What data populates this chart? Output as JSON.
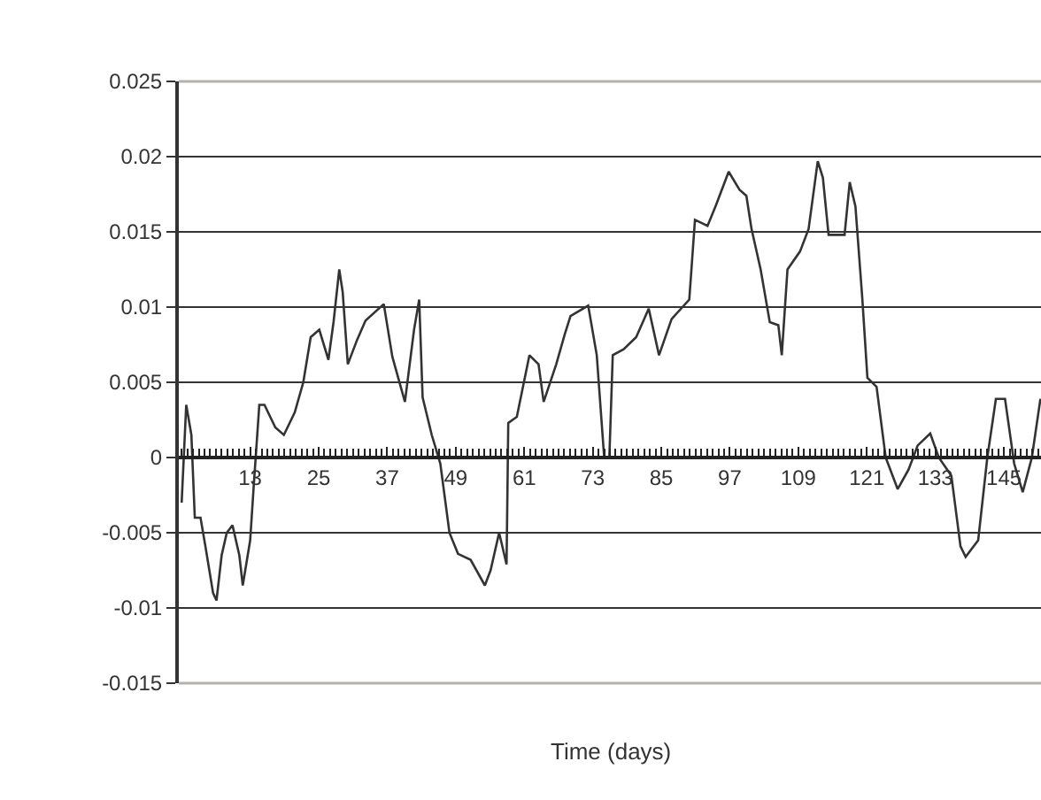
{
  "chart_data": {
    "type": "line",
    "xlabel": "Time (days)",
    "xlim": [
      0.5,
      151.5
    ],
    "xticks": [
      13,
      25,
      37,
      49,
      61,
      73,
      85,
      97,
      109,
      121,
      133,
      145
    ],
    "ylim": [
      -0.015,
      0.025
    ],
    "yticks": [
      {
        "value": -0.015,
        "label": "-0.015"
      },
      {
        "value": -0.01,
        "label": "-0.01"
      },
      {
        "value": -0.005,
        "label": "-0.005"
      },
      0,
      {
        "value": 0.005,
        "label": "0.005"
      },
      {
        "value": 0.01,
        "label": "0.01"
      },
      {
        "value": 0.015,
        "label": "0.015"
      },
      {
        "value": 0.02,
        "label": "0.02"
      },
      {
        "value": 0.025,
        "label": "0.025"
      }
    ],
    "grid": "y",
    "marker": "none",
    "line_style": "solid",
    "series": [
      {
        "color": "#333333",
        "x": [
          1,
          1.8,
          2.7,
          3.3,
          4.3,
          5.2,
          6.5,
          7.1,
          8,
          8.9,
          9.9,
          11.1,
          11.7,
          13,
          13.6,
          14.6,
          15.5,
          17.4,
          18.9,
          20.8,
          22.3,
          23.6,
          25.1,
          26.7,
          27.6,
          28.6,
          29.2,
          30.1,
          31.7,
          33.2,
          36.4,
          37.9,
          40.1,
          41.7,
          42.6,
          43.2,
          44.8,
          46.3,
          47.9,
          49.4,
          51.6,
          54.1,
          55.1,
          56.6,
          57.9,
          58.2,
          59.7,
          61.9,
          63.5,
          64.4,
          66.6,
          68.1,
          69.1,
          72.2,
          73.7,
          75,
          75.9,
          76.5,
          78.4,
          80.6,
          82.8,
          84.6,
          86.8,
          89.9,
          90.9,
          93.1,
          94.6,
          96.8,
          98.7,
          99.9,
          100.8,
          102.4,
          104,
          105.5,
          106.1,
          107.1,
          109.3,
          110.8,
          112.4,
          113.3,
          114.3,
          117.1,
          118,
          119,
          120.2,
          121.1,
          122.7,
          124.3,
          126.4,
          128.3,
          129.9,
          132.1,
          133.6,
          135.8,
          137.4,
          138.3,
          140.5,
          142.1,
          143.6,
          145.2,
          146.8,
          148.3,
          149.9,
          151.4
        ],
        "values": [
          -0.003,
          0.0035,
          0.0015,
          -0.004,
          -0.004,
          -0.006,
          -0.009,
          -0.0095,
          -0.0065,
          -0.005,
          -0.0045,
          -0.0065,
          -0.0085,
          -0.0055,
          -0.002,
          0.0035,
          0.0035,
          0.002,
          0.0015,
          0.003,
          0.005,
          0.008,
          0.0085,
          0.0065,
          0.009,
          0.0125,
          0.011,
          0.0062,
          0.0078,
          0.0091,
          0.0102,
          0.0067,
          0.0037,
          0.0085,
          0.0105,
          0.004,
          0.0015,
          -0.0004,
          -0.005,
          -0.0064,
          -0.0068,
          -0.0085,
          -0.0075,
          -0.005,
          -0.0071,
          0.0023,
          0.0027,
          0.0068,
          0.0062,
          0.0037,
          0.0062,
          0.0082,
          0.0094,
          0.0101,
          0.0068,
          0,
          0,
          0.0068,
          0.0072,
          0.008,
          0.0099,
          0.0068,
          0.0092,
          0.0105,
          0.0158,
          0.0154,
          0.0168,
          0.019,
          0.0178,
          0.0174,
          0.0152,
          0.0125,
          0.009,
          0.0088,
          0.0068,
          0.0125,
          0.0137,
          0.0152,
          0.0197,
          0.0186,
          0.0148,
          0.0148,
          0.0183,
          0.0167,
          0.0106,
          0.0053,
          0.0047,
          0,
          -0.0021,
          -0.0008,
          0.0008,
          0.0016,
          0,
          -0.0012,
          -0.0059,
          -0.0066,
          -0.0055,
          0,
          0.0039,
          0.0039,
          -0.0004,
          -0.0023,
          0,
          0.0039
        ]
      }
    ]
  }
}
